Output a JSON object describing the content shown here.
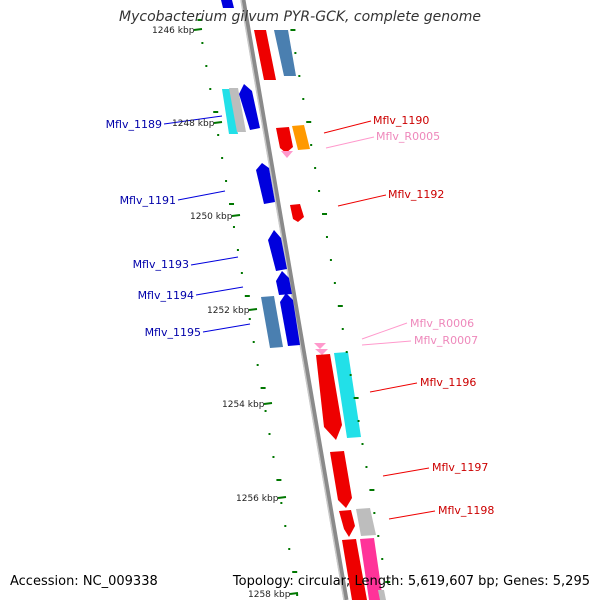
{
  "title": "Mycobacterium gilvum PYR-GCK, complete genome",
  "footer": {
    "accession": "Accession: NC_009338",
    "summary": "Topology: circular; Length: 5,619,607 bp; Genes: 5,295"
  },
  "colors": {
    "red": "#ee0000",
    "blue": "#0000dd",
    "steelblue": "#4a7fb0",
    "cyan": "#22e0e8",
    "gray": "#bdbdbd",
    "orange": "#ff9900",
    "pink": "#ff99cc",
    "magenta": "#ff3399",
    "tick": "#007700",
    "backbone": "#8a8a8a"
  },
  "scale_labels": [
    "1246 kbp",
    "1248 kbp",
    "1250 kbp",
    "1252 kbp",
    "1254 kbp",
    "1256 kbp",
    "1258 kbp"
  ],
  "features": [
    {
      "name": "Mflv_1189",
      "strand": "left",
      "color": "blue"
    },
    {
      "name": "Mflv_1190",
      "strand": "right",
      "color": "red"
    },
    {
      "name": "Mflv_R0005",
      "strand": "right",
      "color": "pink"
    },
    {
      "name": "Mflv_1191",
      "strand": "left",
      "color": "blue"
    },
    {
      "name": "Mflv_1192",
      "strand": "right",
      "color": "red"
    },
    {
      "name": "Mflv_1193",
      "strand": "left",
      "color": "blue"
    },
    {
      "name": "Mflv_1194",
      "strand": "left",
      "color": "blue"
    },
    {
      "name": "Mflv_1195",
      "strand": "left",
      "color": "blue"
    },
    {
      "name": "Mflv_R0006",
      "strand": "right",
      "color": "pink"
    },
    {
      "name": "Mflv_R0007",
      "strand": "right",
      "color": "pink"
    },
    {
      "name": "Mflv_1196",
      "strand": "right",
      "color": "red"
    },
    {
      "name": "Mflv_1197",
      "strand": "right",
      "color": "red"
    },
    {
      "name": "Mflv_1198",
      "strand": "right",
      "color": "red"
    }
  ]
}
